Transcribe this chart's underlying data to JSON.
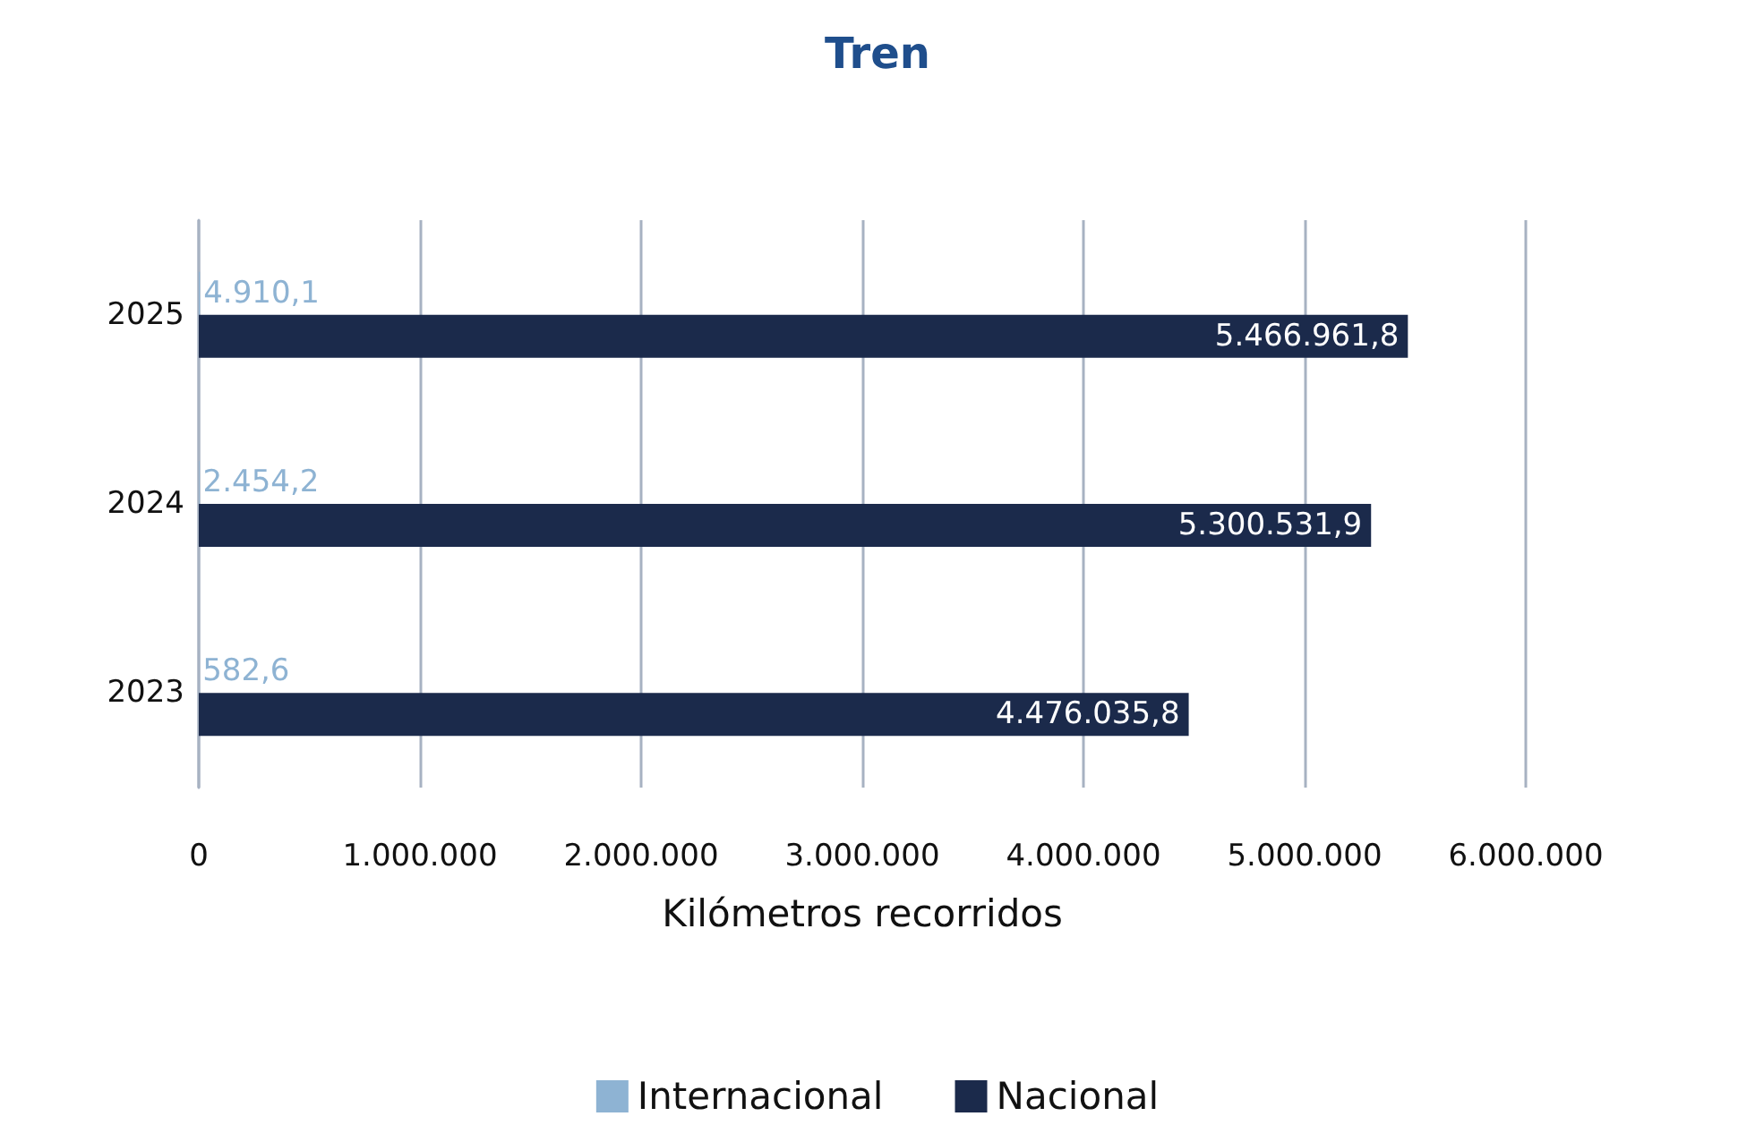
{
  "chart_data": {
    "type": "bar",
    "orientation": "horizontal",
    "title": "Tren",
    "xlabel": "Kilómetros recorridos",
    "categories": [
      "2025",
      "2024",
      "2023"
    ],
    "series": [
      {
        "name": "Internacional",
        "color": "#8eb3d3",
        "values": [
          4910.1,
          2454.2,
          582.6
        ],
        "value_labels": [
          "4.910,1",
          "2.454,2",
          "582,6"
        ]
      },
      {
        "name": "Nacional",
        "color": "#1b2a4b",
        "values": [
          5466961.8,
          5300531.9,
          4476035.8
        ],
        "value_labels": [
          "5.466.961,8",
          "5.300.531,9",
          "4.476.035,8"
        ]
      }
    ],
    "xlim": [
      0,
      6000000
    ],
    "xticks": [
      0,
      {
        "value": 1000000,
        "label": "1.000.000"
      },
      {
        "value": 2000000,
        "label": "2.000.000"
      },
      {
        "value": 3000000,
        "label": "3.000.000"
      },
      {
        "value": 4000000,
        "label": "4.000.000"
      },
      {
        "value": 5000000,
        "label": "5.000.000"
      },
      {
        "value": 6000000,
        "label": "6.000.000"
      }
    ],
    "grid": "x",
    "legend": "bottom"
  }
}
